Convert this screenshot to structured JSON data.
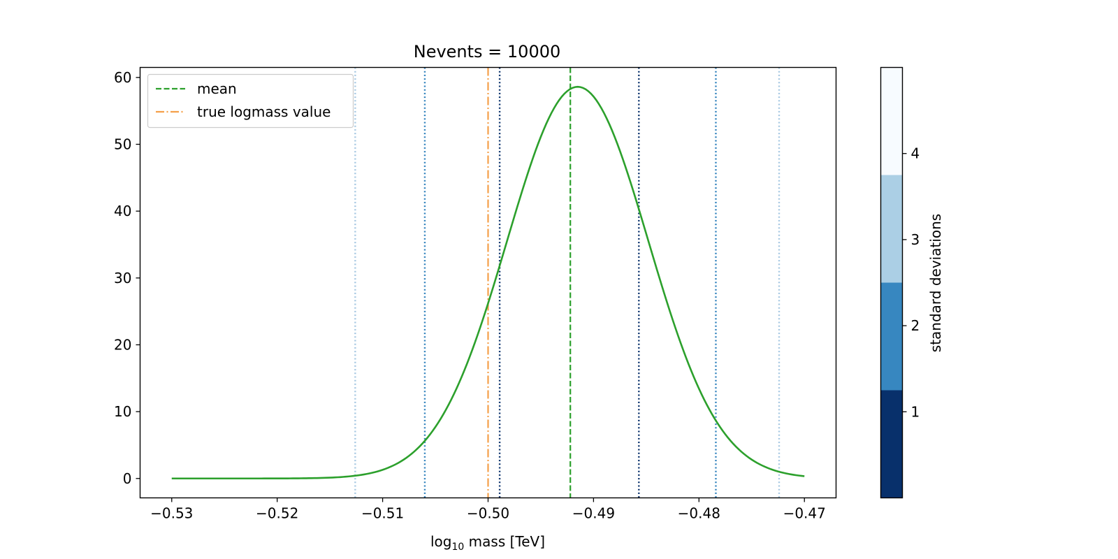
{
  "chart_data": {
    "type": "line",
    "title": "Nevents = 10000",
    "xlabel_prefix": "log",
    "xlabel_sub": "10",
    "xlabel_suffix": " mass [TeV]",
    "xlim": [
      -0.533,
      -0.467
    ],
    "ylim": [
      -2.9,
      61.5
    ],
    "xticks": [
      -0.53,
      -0.52,
      -0.51,
      -0.5,
      -0.49,
      -0.48,
      -0.47
    ],
    "xtick_labels": [
      "−0.53",
      "−0.52",
      "−0.51",
      "−0.50",
      "−0.49",
      "−0.48",
      "−0.47"
    ],
    "yticks": [
      0,
      10,
      20,
      30,
      40,
      50,
      60
    ],
    "ytick_labels": [
      "0",
      "10",
      "20",
      "30",
      "40",
      "50",
      "60"
    ],
    "grid": false,
    "legend_position": "top-left",
    "curve": {
      "color": "#2ca02c",
      "mean": -0.4915,
      "sigma": 0.0067,
      "peak": 58.6,
      "x_start": -0.53,
      "x_end": -0.47
    },
    "vlines": [
      {
        "name": "mean",
        "x": -0.4922,
        "color": "#2ca02c",
        "style": "dashed",
        "in_legend": true
      },
      {
        "name": "true logmass value",
        "x": -0.5,
        "color": "#f5a04a",
        "style": "dashdot",
        "in_legend": true
      },
      {
        "name": "",
        "x": -0.4989,
        "color": "#08306b",
        "style": "dotted",
        "in_legend": false
      },
      {
        "name": "",
        "x": -0.4857,
        "color": "#08306b",
        "style": "dotted",
        "in_legend": false
      },
      {
        "name": "",
        "x": -0.506,
        "color": "#3182bd",
        "style": "dotted",
        "in_legend": false
      },
      {
        "name": "",
        "x": -0.4784,
        "color": "#3182bd",
        "style": "dotted",
        "in_legend": false
      },
      {
        "name": "",
        "x": -0.5126,
        "color": "#a6c8e2",
        "style": "dotted",
        "in_legend": false
      },
      {
        "name": "",
        "x": -0.4724,
        "color": "#a6c8e2",
        "style": "dotted",
        "in_legend": false
      }
    ],
    "colorbar": {
      "label": "standard deviations",
      "range": [
        0,
        5
      ],
      "bands": [
        {
          "from": 0,
          "to": 1.25,
          "color": "#08306b"
        },
        {
          "from": 1.25,
          "to": 2.5,
          "color": "#3787c0"
        },
        {
          "from": 2.5,
          "to": 3.75,
          "color": "#abcfe5"
        },
        {
          "from": 3.75,
          "to": 5,
          "color": "#f7fbff"
        }
      ],
      "ticks": [
        1,
        2,
        3,
        4
      ],
      "tick_labels": [
        "1",
        "2",
        "3",
        "4"
      ]
    }
  }
}
